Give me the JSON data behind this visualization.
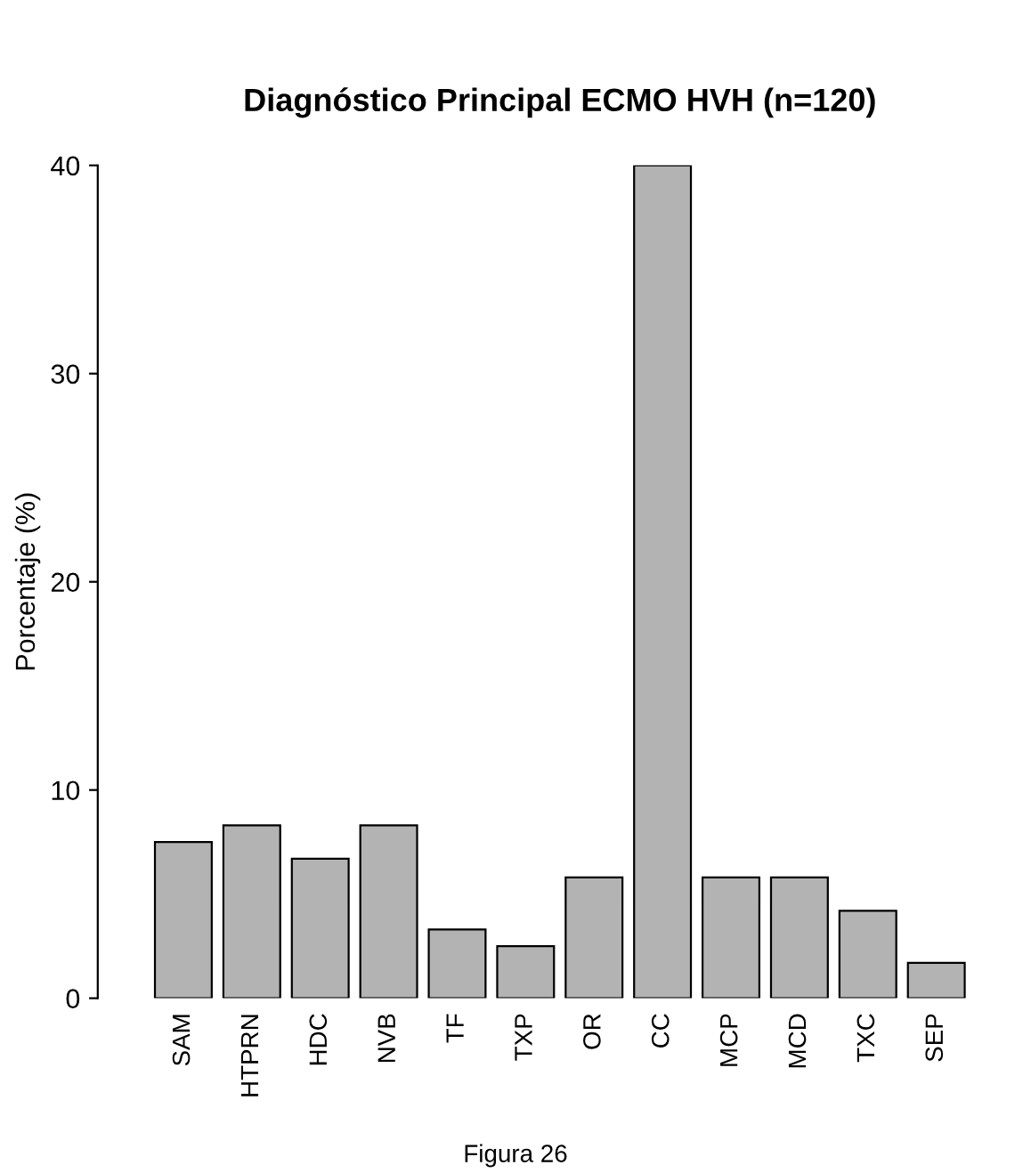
{
  "chart_data": {
    "type": "bar",
    "title": "Diagnóstico Principal ECMO HVH (n=120)",
    "ylabel": "Porcentaje (%)",
    "categories": [
      "SAM",
      "HTPRN",
      "HDC",
      "NVB",
      "TF",
      "TXP",
      "OR",
      "CC",
      "MCP",
      "MCD",
      "TXC",
      "SEP"
    ],
    "values": [
      7.5,
      8.3,
      6.7,
      8.3,
      3.3,
      2.5,
      5.8,
      40,
      5.8,
      5.8,
      4.2,
      1.7
    ],
    "color": "#b3b3b3",
    "ylim": [
      0,
      40
    ],
    "yticks": [
      0,
      10,
      20,
      30,
      40
    ],
    "grid": false,
    "annotations": [
      "Figura 26"
    ]
  }
}
